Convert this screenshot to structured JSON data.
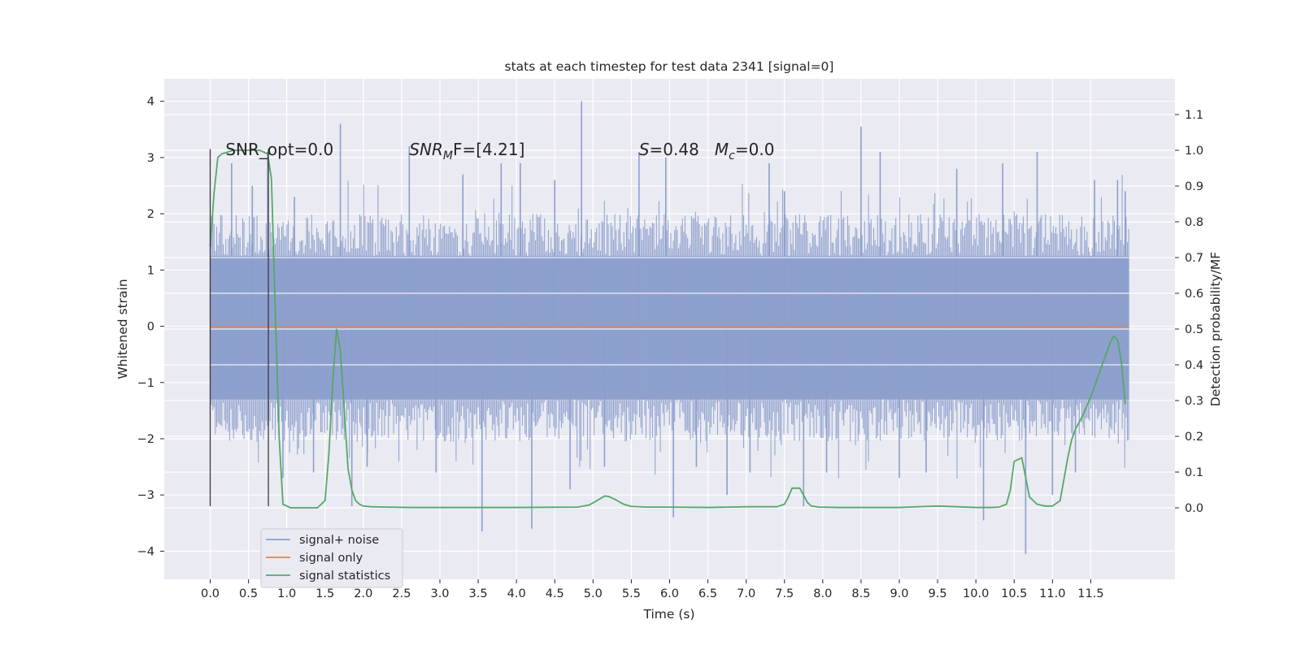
{
  "chart_data": {
    "type": "line",
    "title": "stats at each timestep for test data 2341 [signal=0]",
    "xlabel": "Time (s)",
    "ylabel_left": "Whitened strain",
    "ylabel_right": "Detection probability/MF",
    "xlim": [
      -0.6,
      12.6
    ],
    "ylim_left": [
      -4.5,
      4.4
    ],
    "ylim_right": [
      -0.2,
      1.2
    ],
    "x_ticks": [
      0.0,
      0.5,
      1.0,
      1.5,
      2.0,
      2.5,
      3.0,
      3.5,
      4.0,
      4.5,
      5.0,
      5.5,
      6.0,
      6.5,
      7.0,
      7.5,
      8.0,
      8.5,
      9.0,
      9.5,
      10.0,
      10.5,
      11.0,
      11.5
    ],
    "x_tick_labels": [
      "0.0",
      "0.5",
      "1.0",
      "1.5",
      "2.0",
      "2.5",
      "3.0",
      "3.5",
      "4.0",
      "4.5",
      "5.0",
      "5.5",
      "6.0",
      "6.5",
      "7.0",
      "7.5",
      "8.0",
      "8.5",
      "9.0",
      "9.5",
      "10.0",
      "10.5",
      "11.0",
      "11.5"
    ],
    "y_left_ticks": [
      -4,
      -3,
      -2,
      -1,
      0,
      1,
      2,
      3,
      4
    ],
    "y_left_tick_labels": [
      "−4",
      "−3",
      "−2",
      "−1",
      "0",
      "1",
      "2",
      "3",
      "4"
    ],
    "y_right_ticks": [
      0.0,
      0.1,
      0.2,
      0.3,
      0.4,
      0.5,
      0.6,
      0.7,
      0.8,
      0.9,
      1.0,
      1.1
    ],
    "y_right_tick_labels": [
      "0.0",
      "0.1",
      "0.2",
      "0.3",
      "0.4",
      "0.5",
      "0.6",
      "0.7",
      "0.8",
      "0.9",
      "1.0",
      "1.1"
    ],
    "grid": true,
    "legend_position": "lower-left",
    "series": [
      {
        "name": "signal+ noise",
        "color": "#8c9fcc",
        "axis": "left",
        "x_range": [
          0.0,
          12.0
        ],
        "band": [
          -1.3,
          1.25
        ],
        "peaks": [
          [
            0.28,
            2.9
          ],
          [
            0.55,
            2.5
          ],
          [
            0.75,
            3.1
          ],
          [
            0.95,
            -2.7
          ],
          [
            1.1,
            2.3
          ],
          [
            1.35,
            -2.6
          ],
          [
            1.7,
            3.6
          ],
          [
            1.85,
            -3.2
          ],
          [
            2.05,
            -2.5
          ],
          [
            2.6,
            3.2
          ],
          [
            2.95,
            -2.6
          ],
          [
            3.3,
            2.7
          ],
          [
            3.55,
            -3.65
          ],
          [
            3.8,
            2.9
          ],
          [
            4.05,
            2.9
          ],
          [
            4.2,
            -3.6
          ],
          [
            4.5,
            2.6
          ],
          [
            4.7,
            -2.9
          ],
          [
            4.85,
            4.0
          ],
          [
            5.15,
            -2.5
          ],
          [
            5.6,
            3.1
          ],
          [
            5.95,
            3.0
          ],
          [
            6.05,
            -3.4
          ],
          [
            6.35,
            -2.5
          ],
          [
            6.75,
            -3.0
          ],
          [
            7.05,
            -2.6
          ],
          [
            7.3,
            2.9
          ],
          [
            7.5,
            2.4
          ],
          [
            7.75,
            -3.2
          ],
          [
            8.05,
            -2.6
          ],
          [
            8.5,
            3.55
          ],
          [
            8.75,
            3.1
          ],
          [
            9.0,
            -2.7
          ],
          [
            9.35,
            -2.6
          ],
          [
            9.75,
            2.8
          ],
          [
            10.1,
            -3.45
          ],
          [
            10.35,
            2.9
          ],
          [
            10.65,
            -4.05
          ],
          [
            10.8,
            3.1
          ],
          [
            11.0,
            -3.0
          ],
          [
            11.3,
            -2.6
          ],
          [
            11.55,
            2.6
          ],
          [
            11.85,
            2.6
          ],
          [
            11.95,
            2.4
          ]
        ]
      },
      {
        "name": "signal only",
        "color": "#dd8452",
        "axis": "left",
        "x": [
          0.0,
          12.0
        ],
        "y": [
          0.0,
          0.0
        ]
      },
      {
        "name": "signal statistics",
        "color": "#55a868",
        "axis": "right",
        "x": [
          0.0,
          0.05,
          0.1,
          0.15,
          0.3,
          0.5,
          0.65,
          0.75,
          0.8,
          0.85,
          0.9,
          0.95,
          1.05,
          1.2,
          1.4,
          1.5,
          1.55,
          1.6,
          1.65,
          1.7,
          1.75,
          1.8,
          1.85,
          1.9,
          1.95,
          2.0,
          2.1,
          2.3,
          2.6,
          3.0,
          4.0,
          4.8,
          4.95,
          5.05,
          5.15,
          5.2,
          5.3,
          5.4,
          5.5,
          5.7,
          6.0,
          6.5,
          7.0,
          7.4,
          7.5,
          7.55,
          7.6,
          7.7,
          7.75,
          7.8,
          7.85,
          7.95,
          8.2,
          9.0,
          9.5,
          10.0,
          10.2,
          10.3,
          10.4,
          10.45,
          10.5,
          10.6,
          10.7,
          10.8,
          10.9,
          11.0,
          11.1,
          11.15,
          11.2,
          11.25,
          11.3,
          11.4,
          11.5,
          11.6,
          11.7,
          11.75,
          11.8,
          11.85,
          11.9,
          11.95
        ],
        "y": [
          0.73,
          0.88,
          0.98,
          0.99,
          1.0,
          1.0,
          1.0,
          0.99,
          0.92,
          0.55,
          0.2,
          0.01,
          0.0,
          0.0,
          0.0,
          0.02,
          0.15,
          0.35,
          0.5,
          0.44,
          0.28,
          0.11,
          0.05,
          0.02,
          0.01,
          0.005,
          0.003,
          0.002,
          0.001,
          0.001,
          0.001,
          0.002,
          0.008,
          0.02,
          0.033,
          0.032,
          0.022,
          0.01,
          0.004,
          0.002,
          0.002,
          0.001,
          0.003,
          0.003,
          0.01,
          0.03,
          0.055,
          0.055,
          0.035,
          0.015,
          0.005,
          0.002,
          0.001,
          0.001,
          0.005,
          0.001,
          0.001,
          0.002,
          0.01,
          0.05,
          0.13,
          0.14,
          0.03,
          0.01,
          0.005,
          0.005,
          0.02,
          0.08,
          0.14,
          0.19,
          0.22,
          0.26,
          0.31,
          0.37,
          0.43,
          0.46,
          0.48,
          0.47,
          0.41,
          0.29
        ]
      }
    ],
    "vertical_lines": [
      {
        "x": 0.0,
        "y": [
          -3.2,
          3.15
        ]
      },
      {
        "x": 0.76,
        "y": [
          -3.2,
          3.15
        ]
      }
    ],
    "annotations": [
      {
        "id": "snr-opt",
        "text": "SNR_opt=0.0",
        "x": 0.2,
        "y": 3.1
      },
      {
        "id": "snr-mf",
        "text": "SNR",
        "sub": "M",
        "text2": "F=[4.21]",
        "italic_prefix": true,
        "x": 2.6,
        "y": 3.1
      },
      {
        "id": "s-mc",
        "text": "S",
        "text2": "=0.48   ",
        "m_text": "M",
        "m_sub": "c",
        "text3": "=0.0",
        "x": 5.6,
        "y": 3.1
      }
    ]
  }
}
